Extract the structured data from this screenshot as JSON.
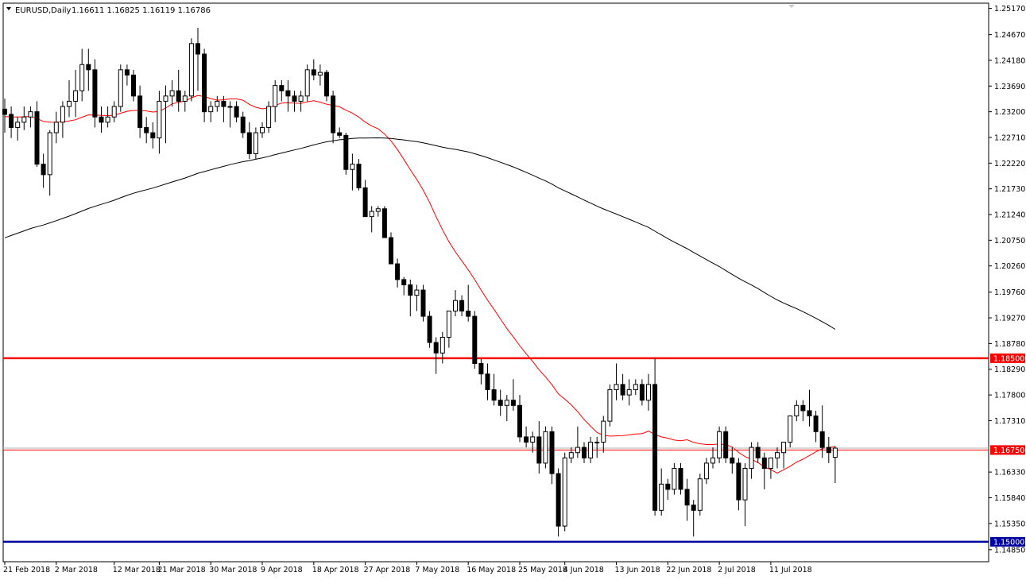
{
  "header": {
    "symbol_text": "EURUSD,Daily",
    "ohlc_text": "1.16611 1.16825 1.16119 1.16786"
  },
  "chart_data": {
    "type": "candlestick",
    "symbol": "EURUSD",
    "timeframe": "Daily",
    "ylim": [
      1.1462,
      1.2527
    ],
    "y_ticks": [
      1.2517,
      1.2467,
      1.2418,
      1.2369,
      1.232,
      1.2271,
      1.2222,
      1.2173,
      1.2124,
      1.2075,
      1.2026,
      1.1976,
      1.1927,
      1.1878,
      1.1829,
      1.178,
      1.1731,
      1.1633,
      1.1584,
      1.1535,
      1.1485
    ],
    "x_tick_labels": [
      "21 Feb 2018",
      "2 Mar 2018",
      "12 Mar 2018",
      "21 Mar 2018",
      "30 Mar 2018",
      "9 Apr 2018",
      "18 Apr 2018",
      "27 Apr 2018",
      "7 May 2018",
      "16 May 2018",
      "25 May 2018",
      "4 Jun 2018",
      "13 Jun 2018",
      "22 Jun 2018",
      "2 Jul 2018",
      "11 Jul 2018"
    ],
    "x_tick_bar_index": [
      0,
      8,
      17,
      24,
      32,
      40,
      48,
      56,
      64,
      72,
      80,
      87,
      95,
      103,
      111,
      119
    ],
    "horizontal_lines": [
      {
        "value": 1.185,
        "label": "1.18500",
        "color": "#ff0000"
      },
      {
        "value": 1.1675,
        "label": "1.16750",
        "color": "#ff0000"
      },
      {
        "value": 1.15,
        "label": "1.15000",
        "color": "#0000a0"
      }
    ],
    "current_price_line": 1.16786,
    "colors": {
      "bull_fill": "#ffffff",
      "bear_fill": "#000000",
      "candle_border": "#000000",
      "ma_fast": "#ff0000",
      "ma_slow": "#000000"
    },
    "candles": [
      [
        1.2325,
        1.2345,
        1.228,
        1.2315
      ],
      [
        1.2315,
        1.233,
        1.227,
        1.229
      ],
      [
        1.229,
        1.231,
        1.2265,
        1.23
      ],
      [
        1.23,
        1.233,
        1.2285,
        1.231
      ],
      [
        1.231,
        1.233,
        1.229,
        1.232
      ],
      [
        1.232,
        1.234,
        1.2215,
        1.222
      ],
      [
        1.222,
        1.224,
        1.2175,
        1.22
      ],
      [
        1.22,
        1.2285,
        1.216,
        1.228
      ],
      [
        1.228,
        1.232,
        1.226,
        1.23
      ],
      [
        1.23,
        1.234,
        1.227,
        1.233
      ],
      [
        1.233,
        1.238,
        1.231,
        1.234
      ],
      [
        1.234,
        1.24,
        1.231,
        1.236
      ],
      [
        1.236,
        1.244,
        1.234,
        1.241
      ],
      [
        1.241,
        1.244,
        1.236,
        1.24
      ],
      [
        1.24,
        1.242,
        1.229,
        1.231
      ],
      [
        1.231,
        1.233,
        1.228,
        1.23
      ],
      [
        1.23,
        1.233,
        1.229,
        1.231
      ],
      [
        1.231,
        1.234,
        1.23,
        1.233
      ],
      [
        1.233,
        1.241,
        1.232,
        1.24
      ],
      [
        1.24,
        1.241,
        1.237,
        1.239
      ],
      [
        1.239,
        1.24,
        1.234,
        1.235
      ],
      [
        1.235,
        1.237,
        1.227,
        1.229
      ],
      [
        1.229,
        1.231,
        1.226,
        1.228
      ],
      [
        1.228,
        1.23,
        1.225,
        1.227
      ],
      [
        1.227,
        1.236,
        1.224,
        1.234
      ],
      [
        1.234,
        1.237,
        1.226,
        1.235
      ],
      [
        1.235,
        1.238,
        1.233,
        1.236
      ],
      [
        1.236,
        1.24,
        1.232,
        1.234
      ],
      [
        1.234,
        1.236,
        1.232,
        1.235
      ],
      [
        1.235,
        1.246,
        1.234,
        1.245
      ],
      [
        1.245,
        1.248,
        1.236,
        1.243
      ],
      [
        1.243,
        1.244,
        1.23,
        1.232
      ],
      [
        1.232,
        1.234,
        1.23,
        1.233
      ],
      [
        1.233,
        1.235,
        1.232,
        1.234
      ],
      [
        1.234,
        1.235,
        1.23,
        1.233
      ],
      [
        1.233,
        1.234,
        1.229,
        1.233
      ],
      [
        1.233,
        1.234,
        1.23,
        1.231
      ],
      [
        1.231,
        1.232,
        1.227,
        1.228
      ],
      [
        1.228,
        1.23,
        1.223,
        1.224
      ],
      [
        1.224,
        1.229,
        1.223,
        1.228
      ],
      [
        1.228,
        1.23,
        1.227,
        1.229
      ],
      [
        1.229,
        1.234,
        1.228,
        1.233
      ],
      [
        1.233,
        1.238,
        1.23,
        1.237
      ],
      [
        1.237,
        1.238,
        1.234,
        1.236
      ],
      [
        1.236,
        1.238,
        1.232,
        1.235
      ],
      [
        1.235,
        1.236,
        1.232,
        1.234
      ],
      [
        1.234,
        1.236,
        1.232,
        1.235
      ],
      [
        1.235,
        1.241,
        1.234,
        1.24
      ],
      [
        1.24,
        1.242,
        1.238,
        1.239
      ],
      [
        1.239,
        1.241,
        1.237,
        1.2395
      ],
      [
        1.2395,
        1.24,
        1.234,
        1.235
      ],
      [
        1.235,
        1.236,
        1.226,
        1.228
      ],
      [
        1.228,
        1.229,
        1.227,
        1.2275
      ],
      [
        1.2275,
        1.228,
        1.22,
        1.221
      ],
      [
        1.221,
        1.224,
        1.217,
        1.222
      ],
      [
        1.222,
        1.223,
        1.217,
        1.2175
      ],
      [
        1.2175,
        1.219,
        1.212,
        1.212
      ],
      [
        1.212,
        1.214,
        1.209,
        1.213
      ],
      [
        1.213,
        1.214,
        1.212,
        1.2135
      ],
      [
        1.2135,
        1.214,
        1.208,
        1.208
      ],
      [
        1.208,
        1.209,
        1.203,
        1.203
      ],
      [
        1.203,
        1.204,
        1.1985,
        1.2
      ],
      [
        1.2,
        1.2005,
        1.197,
        1.199
      ],
      [
        1.199,
        1.2,
        1.193,
        1.197
      ],
      [
        1.197,
        1.199,
        1.194,
        1.198
      ],
      [
        1.198,
        1.199,
        1.192,
        1.193
      ],
      [
        1.193,
        1.194,
        1.187,
        1.188
      ],
      [
        1.188,
        1.189,
        1.182,
        1.186
      ],
      [
        1.186,
        1.19,
        1.184,
        1.189
      ],
      [
        1.189,
        1.194,
        1.187,
        1.194
      ],
      [
        1.194,
        1.198,
        1.193,
        1.196
      ],
      [
        1.196,
        1.197,
        1.193,
        1.194
      ],
      [
        1.194,
        1.199,
        1.192,
        1.193
      ],
      [
        1.193,
        1.194,
        1.183,
        1.184
      ],
      [
        1.184,
        1.185,
        1.18,
        1.182
      ],
      [
        1.182,
        1.184,
        1.177,
        1.179
      ],
      [
        1.179,
        1.182,
        1.176,
        1.177
      ],
      [
        1.177,
        1.179,
        1.174,
        1.176
      ],
      [
        1.176,
        1.178,
        1.173,
        1.177
      ],
      [
        1.177,
        1.181,
        1.175,
        1.176
      ],
      [
        1.176,
        1.178,
        1.169,
        1.17
      ],
      [
        1.17,
        1.172,
        1.168,
        1.169
      ],
      [
        1.169,
        1.171,
        1.167,
        1.17
      ],
      [
        1.17,
        1.173,
        1.163,
        1.165
      ],
      [
        1.165,
        1.172,
        1.164,
        1.171
      ],
      [
        1.171,
        1.172,
        1.161,
        1.163
      ],
      [
        1.163,
        1.164,
        1.151,
        1.153
      ],
      [
        1.153,
        1.167,
        1.152,
        1.166
      ],
      [
        1.166,
        1.168,
        1.165,
        1.167
      ],
      [
        1.167,
        1.172,
        1.166,
        1.168
      ],
      [
        1.168,
        1.169,
        1.165,
        1.166
      ],
      [
        1.166,
        1.17,
        1.165,
        1.169
      ],
      [
        1.169,
        1.17,
        1.166,
        1.169
      ],
      [
        1.169,
        1.174,
        1.167,
        1.173
      ],
      [
        1.173,
        1.18,
        1.172,
        1.179
      ],
      [
        1.179,
        1.184,
        1.177,
        1.18
      ],
      [
        1.18,
        1.182,
        1.177,
        1.178
      ],
      [
        1.178,
        1.181,
        1.176,
        1.179
      ],
      [
        1.179,
        1.181,
        1.178,
        1.18
      ],
      [
        1.18,
        1.181,
        1.176,
        1.177
      ],
      [
        1.177,
        1.182,
        1.175,
        1.18
      ],
      [
        1.18,
        1.185,
        1.155,
        1.156
      ],
      [
        1.156,
        1.164,
        1.155,
        1.161
      ],
      [
        1.161,
        1.162,
        1.158,
        1.16
      ],
      [
        1.16,
        1.165,
        1.159,
        1.164
      ],
      [
        1.164,
        1.165,
        1.159,
        1.16
      ],
      [
        1.16,
        1.162,
        1.154,
        1.157
      ],
      [
        1.157,
        1.158,
        1.151,
        1.156
      ],
      [
        1.156,
        1.163,
        1.155,
        1.162
      ],
      [
        1.162,
        1.166,
        1.161,
        1.165
      ],
      [
        1.165,
        1.168,
        1.164,
        1.166
      ],
      [
        1.166,
        1.172,
        1.165,
        1.171
      ],
      [
        1.171,
        1.172,
        1.165,
        1.166
      ],
      [
        1.166,
        1.168,
        1.163,
        1.165
      ],
      [
        1.165,
        1.166,
        1.156,
        1.158
      ],
      [
        1.158,
        1.165,
        1.153,
        1.164
      ],
      [
        1.164,
        1.169,
        1.162,
        1.168
      ],
      [
        1.168,
        1.169,
        1.165,
        1.166
      ],
      [
        1.166,
        1.167,
        1.16,
        1.164
      ],
      [
        1.164,
        1.166,
        1.162,
        1.166
      ],
      [
        1.166,
        1.168,
        1.164,
        1.167
      ],
      [
        1.167,
        1.169,
        1.164,
        1.169
      ],
      [
        1.169,
        1.174,
        1.168,
        1.174
      ],
      [
        1.174,
        1.177,
        1.173,
        1.176
      ],
      [
        1.176,
        1.177,
        1.173,
        1.175
      ],
      [
        1.175,
        1.179,
        1.172,
        1.174
      ],
      [
        1.174,
        1.175,
        1.169,
        1.171
      ],
      [
        1.171,
        1.176,
        1.166,
        1.168
      ],
      [
        1.168,
        1.17,
        1.165,
        1.167
      ],
      [
        1.16611,
        1.16825,
        1.16119,
        1.16786
      ]
    ]
  }
}
